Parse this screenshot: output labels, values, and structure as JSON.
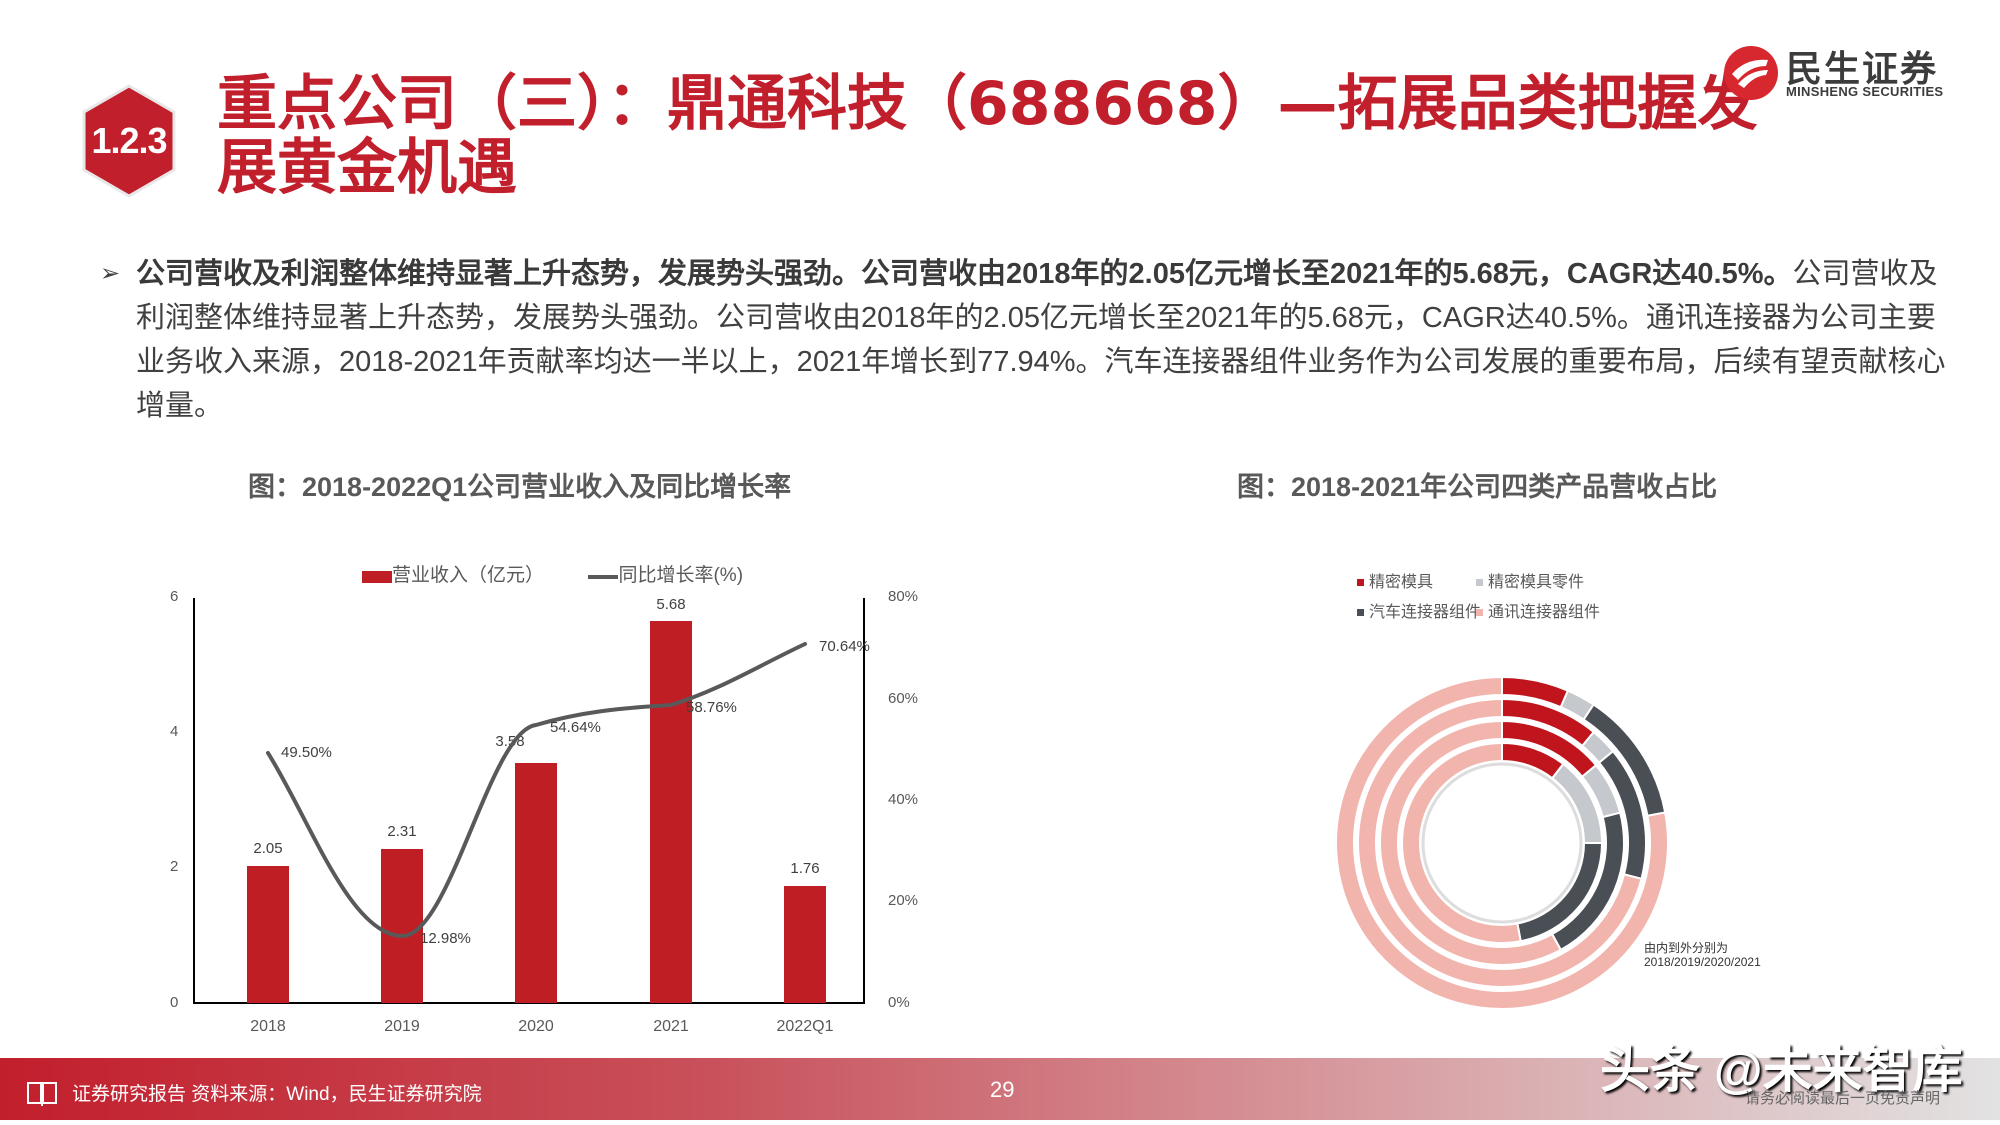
{
  "header": {
    "section_number": "1.2.3",
    "title_line1": "重点公司（三）：鼎通科技（688668）—拓展品类把握发",
    "title_line2": "展黄金机遇",
    "logo_cn": "民生证券",
    "logo_en": "MINSHENG SECURITIES",
    "brand_color": "#c21f2c"
  },
  "body": {
    "bullet_icon": "➢",
    "bold_text": "公司营收及利润整体维持显著上升态势，发展势头强劲。公司营收由2018年的2.05亿元增长至2021年的5.68元，CAGR达40.5%。",
    "normal_text": "公司营收及利润整体维持显著上升态势，发展势头强劲。公司营收由2018年的2.05亿元增长至2021年的5.68元，CAGR达40.5%。通讯连接器为公司主要业务收入来源，2018-2021年贡献率均达一半以上，2021年增长到77.94%。汽车连接器组件业务作为公司发展的重要布局，后续有望贡献核心增量。"
  },
  "left_chart": {
    "title": "图：2018-2022Q1公司营业收入及同比增长率",
    "legend_bar": "营业收入（亿元）",
    "legend_line": "同比增长率(%)",
    "y_ticks": [
      "6",
      "4",
      "2",
      "0"
    ],
    "y2_ticks": [
      "80%",
      "60%",
      "40%",
      "20%",
      "0%"
    ],
    "categories": [
      "2018",
      "2019",
      "2020",
      "2021",
      "2022Q1"
    ],
    "bar_labels": [
      "2.05",
      "2.31",
      "3.58",
      "5.68",
      "1.76"
    ],
    "line_labels": [
      "49.50%",
      "12.98%",
      "54.64%",
      "58.76%",
      "70.64%"
    ]
  },
  "right_chart": {
    "title": "图：2018-2021年公司四类产品营收占比",
    "legend": [
      {
        "label": "精密模具",
        "color": "#c0151d"
      },
      {
        "label": "精密模具零件",
        "color": "#c5c8cc"
      },
      {
        "label": "汽车连接器组件",
        "color": "#4a4e55"
      },
      {
        "label": "通讯连接器组件",
        "color": "#f2b5ae"
      }
    ],
    "note_line1": "由内到外分别为",
    "note_line2": "2018/2019/2020/2021"
  },
  "chart_data": [
    {
      "type": "bar",
      "title": "图：2018-2022Q1公司营业收入及同比增长率",
      "categories": [
        "2018",
        "2019",
        "2020",
        "2021",
        "2022Q1"
      ],
      "series": [
        {
          "name": "营业收入（亿元）",
          "type": "bar",
          "axis": "left",
          "color": "#be1e24",
          "values": [
            2.05,
            2.31,
            3.58,
            5.68,
            1.76
          ]
        },
        {
          "name": "同比增长率(%)",
          "type": "line",
          "axis": "right",
          "color": "#595959",
          "values": [
            49.5,
            12.98,
            54.64,
            58.76,
            70.64
          ]
        }
      ],
      "xlabel": "",
      "ylabel": "",
      "ylim": [
        0,
        6
      ],
      "y2lim": [
        0,
        80
      ],
      "legend_position": "top",
      "grid": false
    },
    {
      "type": "pie",
      "subtype": "multi-ring donut",
      "title": "图：2018-2021年公司四类产品营收占比",
      "categories": [
        "精密模具",
        "精密模具零件",
        "汽车连接器组件",
        "通讯连接器组件"
      ],
      "series": [
        {
          "name": "2018",
          "values": [
            10.5,
            14.5,
            22.0,
            53.0
          ]
        },
        {
          "name": "2019",
          "values": [
            14.0,
            7.0,
            21.0,
            58.0
          ]
        },
        {
          "name": "2020",
          "values": [
            11.0,
            3.0,
            15.0,
            71.0
          ]
        },
        {
          "name": "2021",
          "values": [
            6.5,
            2.8,
            12.76,
            77.94
          ]
        }
      ],
      "annotation": "由内到外分别为 2018/2019/2020/2021",
      "legend_position": "top"
    }
  ],
  "footer": {
    "book_icon": "book-icon",
    "text": "证券研究报告  资料来源：Wind，民生证券研究院",
    "page_number": "29",
    "watermark": "头条 @未来智库",
    "disclaimer": "请务必阅读最后一页免责声明"
  }
}
